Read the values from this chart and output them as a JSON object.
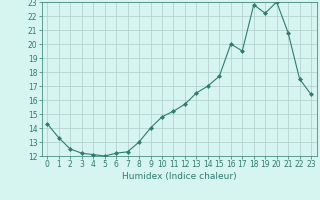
{
  "x": [
    0,
    1,
    2,
    3,
    4,
    5,
    6,
    7,
    8,
    9,
    10,
    11,
    12,
    13,
    14,
    15,
    16,
    17,
    18,
    19,
    20,
    21,
    22,
    23
  ],
  "y": [
    14.3,
    13.3,
    12.5,
    12.2,
    12.1,
    12.0,
    12.2,
    12.3,
    13.0,
    14.0,
    14.8,
    15.2,
    15.7,
    16.5,
    17.0,
    17.7,
    20.0,
    19.5,
    22.8,
    22.2,
    23.0,
    20.8,
    17.5,
    16.4
  ],
  "line_color": "#2e7d6e",
  "marker": "D",
  "marker_size": 2,
  "background_color": "#d6f5f0",
  "grid_color": "#b0cec8",
  "xlabel": "Humidex (Indice chaleur)",
  "ylim": [
    12,
    23
  ],
  "xlim": [
    -0.5,
    23.5
  ],
  "yticks": [
    12,
    13,
    14,
    15,
    16,
    17,
    18,
    19,
    20,
    21,
    22,
    23
  ],
  "xticks": [
    0,
    1,
    2,
    3,
    4,
    5,
    6,
    7,
    8,
    9,
    10,
    11,
    12,
    13,
    14,
    15,
    16,
    17,
    18,
    19,
    20,
    21,
    22,
    23
  ],
  "tick_fontsize": 5.5,
  "label_fontsize": 6.5
}
